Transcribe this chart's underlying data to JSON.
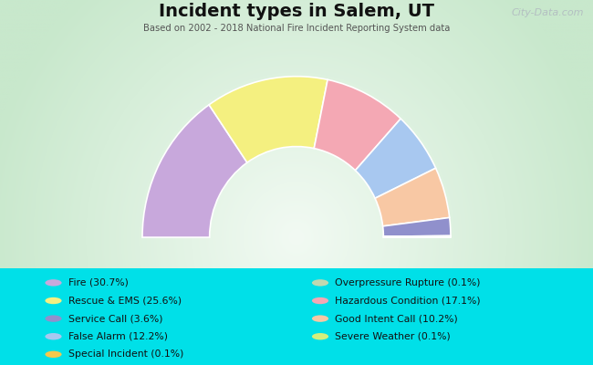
{
  "title": "Incident types in Salem, UT",
  "subtitle": "Based on 2002 - 2018 National Fire Incident Reporting System data",
  "bg_outer": "#00e0e8",
  "watermark": "City-Data.com",
  "segments": [
    {
      "label": "Fire (30.7%)",
      "value": 30.7,
      "color": "#c8a8dc"
    },
    {
      "label": "Rescue & EMS (25.6%)",
      "value": 25.6,
      "color": "#f4f080"
    },
    {
      "label": "Hazardous Condition (17.1%)",
      "value": 17.1,
      "color": "#f4a8b4"
    },
    {
      "label": "False Alarm (12.2%)",
      "value": 12.2,
      "color": "#a8c8f0"
    },
    {
      "label": "Good Intent Call (10.2%)",
      "value": 10.2,
      "color": "#f8c8a4"
    },
    {
      "label": "Service Call (3.6%)",
      "value": 3.6,
      "color": "#9090cc"
    },
    {
      "label": "Overpressure Rupture (0.1%)",
      "value": 0.1,
      "color": "#c0d8b0"
    },
    {
      "label": "Special Incident (0.1%)",
      "value": 0.1,
      "color": "#f4c84c"
    },
    {
      "label": "Severe Weather (0.1%)",
      "value": 0.1,
      "color": "#d4f07c"
    }
  ],
  "legend_left": [
    {
      "label": "Fire (30.7%)",
      "color": "#c8a8dc"
    },
    {
      "label": "Rescue & EMS (25.6%)",
      "color": "#f4f080"
    },
    {
      "label": "Service Call (3.6%)",
      "color": "#9090cc"
    },
    {
      "label": "False Alarm (12.2%)",
      "color": "#a8c8f0"
    },
    {
      "label": "Special Incident (0.1%)",
      "color": "#f4c84c"
    }
  ],
  "legend_right": [
    {
      "label": "Overpressure Rupture (0.1%)",
      "color": "#c0d8b0"
    },
    {
      "label": "Hazardous Condition (17.1%)",
      "color": "#f4a8b4"
    },
    {
      "label": "Good Intent Call (10.2%)",
      "color": "#f8c8a4"
    },
    {
      "label": "Severe Weather (0.1%)",
      "color": "#d4f07c"
    }
  ],
  "inner_r": 0.44,
  "outer_r": 0.78,
  "chart_bg_center": "#f5faf5",
  "chart_bg_edge": "#d0e8d0"
}
